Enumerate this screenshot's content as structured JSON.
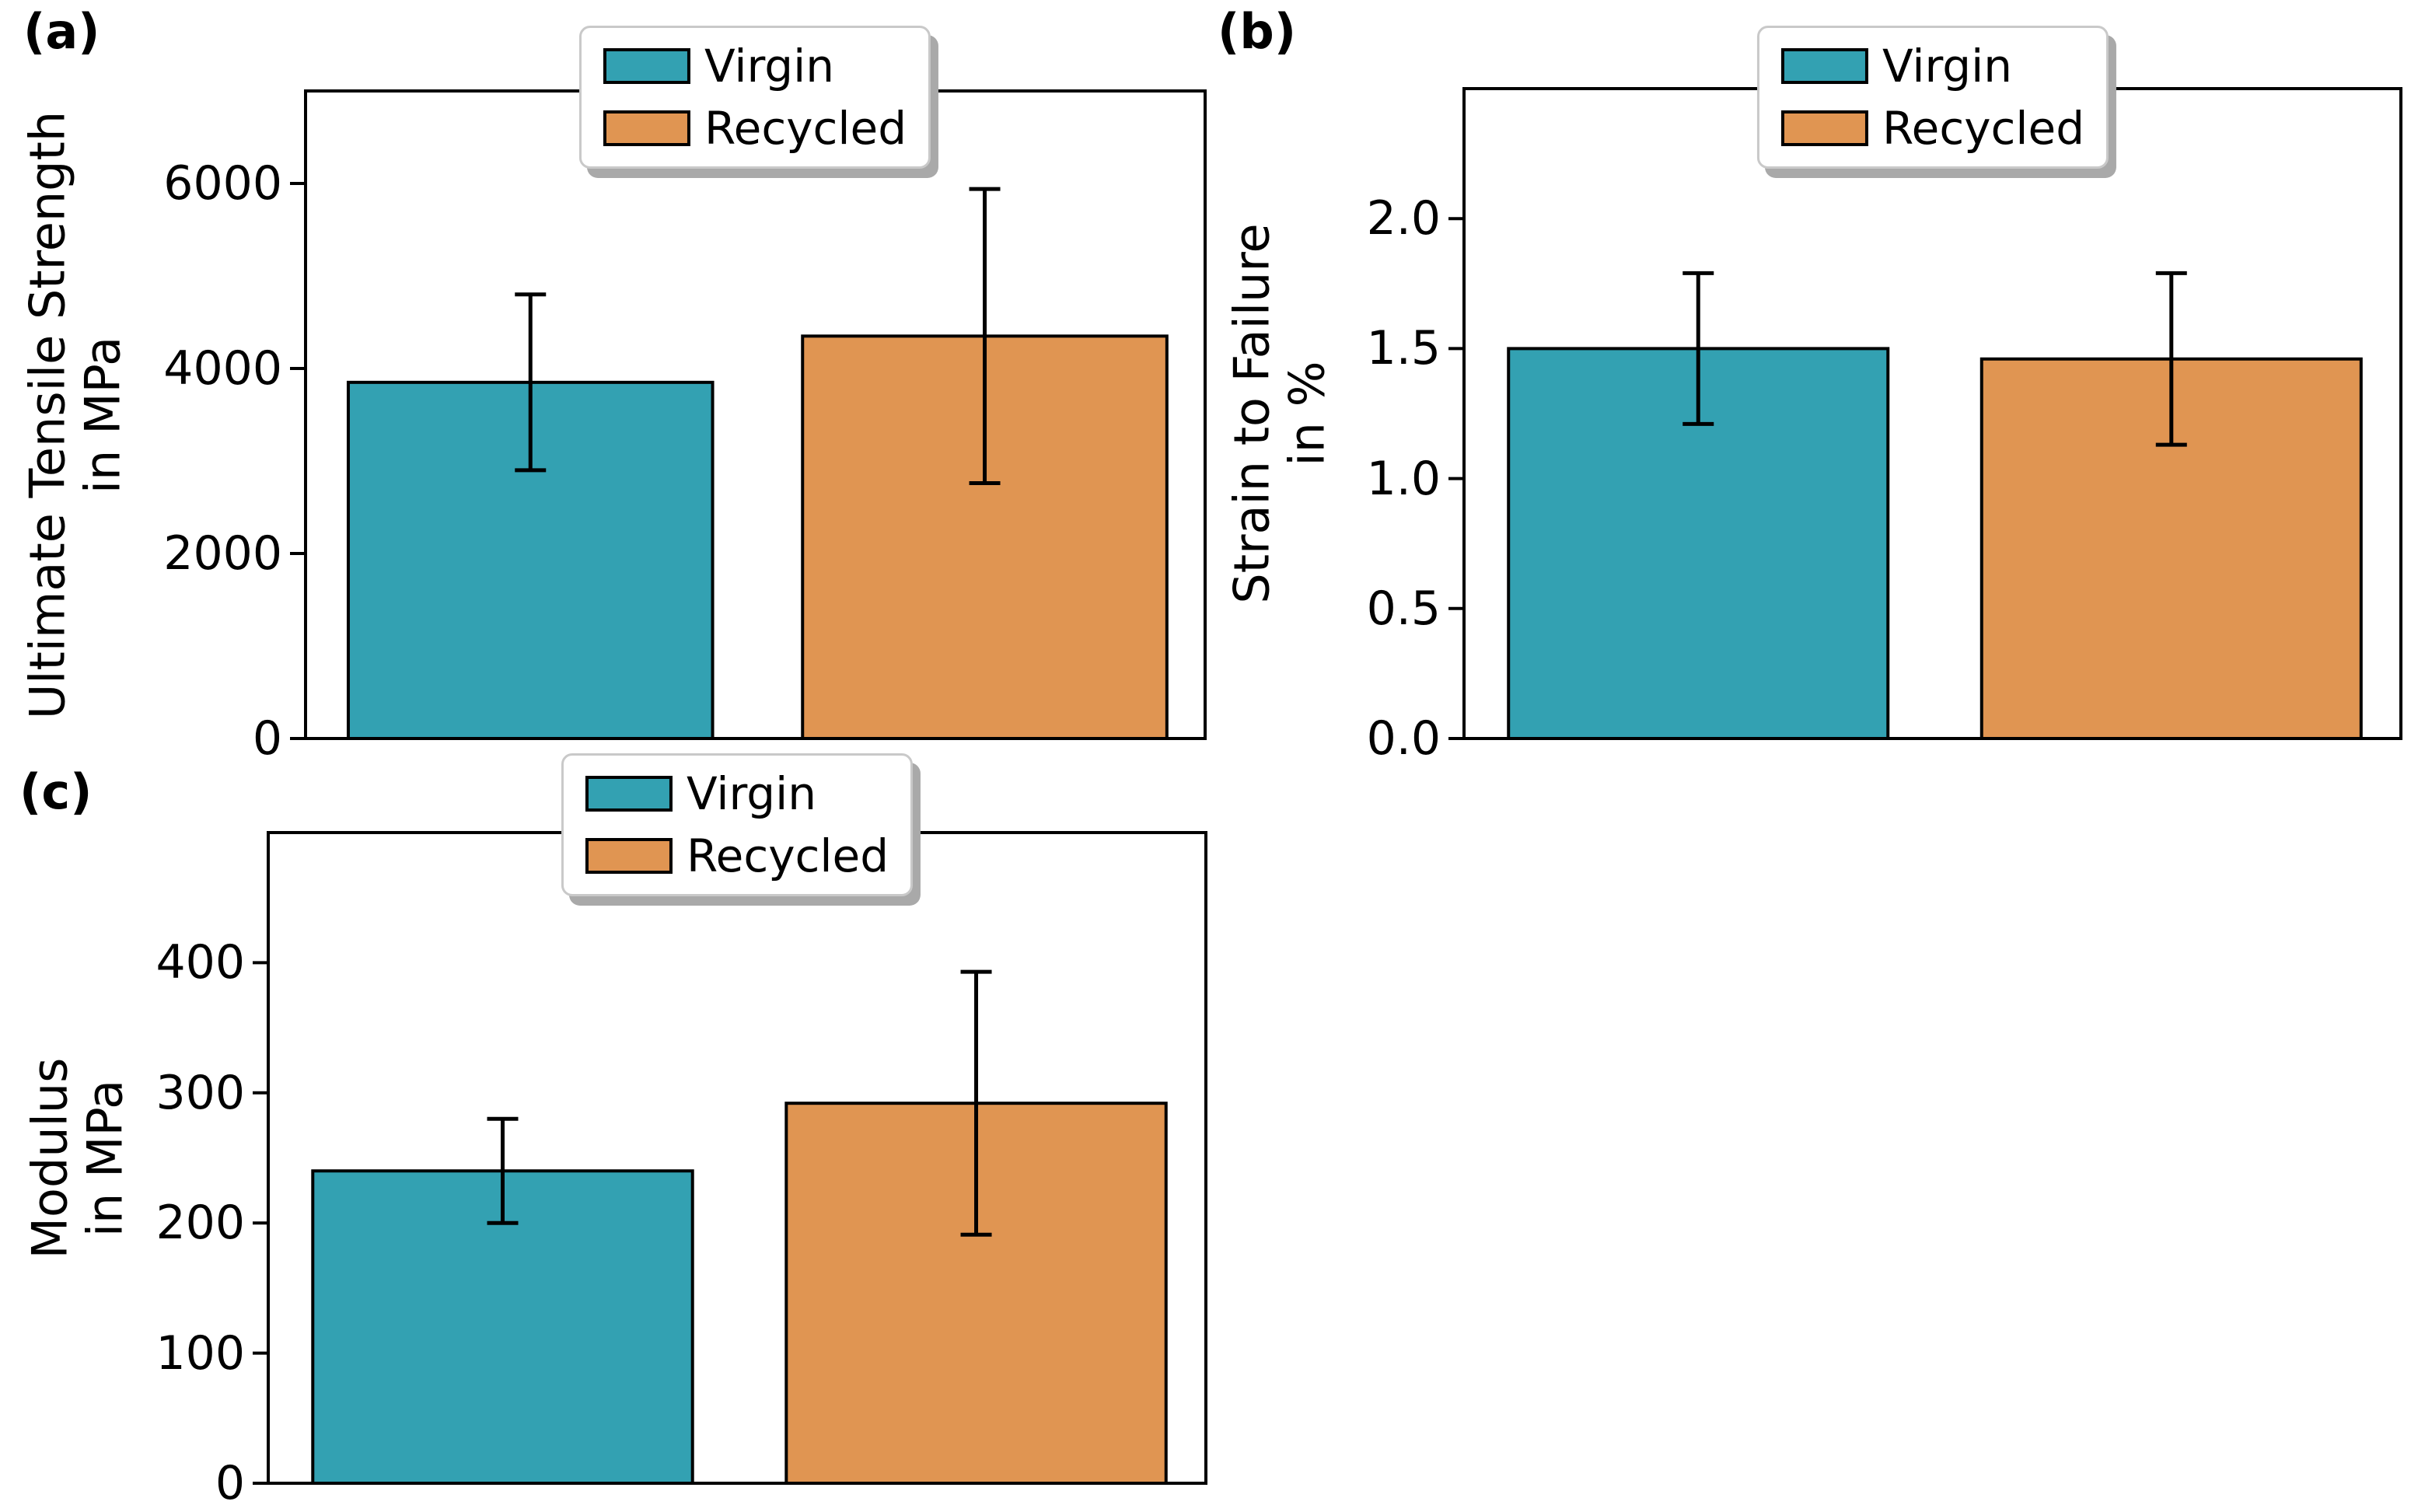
{
  "figure": {
    "background": "#ffffff",
    "series": [
      {
        "name": "Virgin",
        "color": "#33a1b2"
      },
      {
        "name": "Recycled",
        "color": "#e09552"
      }
    ],
    "colors": {
      "bar_edge": "#000000",
      "error_bar": "#000000",
      "axis": "#000000",
      "legend_border": "#c9c9c9",
      "legend_shadow": "#a9a9a9",
      "text": "#000000"
    }
  },
  "chart_data": [
    {
      "id": "a",
      "type": "bar",
      "panel_label": "(a)",
      "title": "",
      "xlabel": "",
      "ylabel": "Ultimate Tensile Strength in MPa",
      "ylabel_lines": [
        "Ultimate Tensile Strength",
        "in MPa"
      ],
      "categories": [
        "Virgin",
        "Recycled"
      ],
      "values": [
        3850,
        4350
      ],
      "errors": [
        950,
        1590
      ],
      "ylim": [
        0,
        7000
      ],
      "ytick_values": [
        0,
        2000,
        4000,
        6000
      ],
      "yticks": [
        "0",
        "2000",
        "4000",
        "6000"
      ],
      "xticks": [],
      "legend": [
        "Virgin",
        "Recycled"
      ],
      "legend_position": "upper center",
      "grid": false
    },
    {
      "id": "b",
      "type": "bar",
      "panel_label": "(b)",
      "title": "",
      "xlabel": "",
      "ylabel": "Strain to Failure in %",
      "ylabel_lines": [
        "Strain to Failure",
        "in %"
      ],
      "categories": [
        "Virgin",
        "Recycled"
      ],
      "values": [
        1.5,
        1.46
      ],
      "errors": [
        0.29,
        0.33
      ],
      "ylim": [
        0,
        2.5
      ],
      "ytick_values": [
        0,
        0.5,
        1.0,
        1.5,
        2.0
      ],
      "yticks": [
        "0.0",
        "0.5",
        "1.0",
        "1.5",
        "2.0"
      ],
      "xticks": [],
      "legend": [
        "Virgin",
        "Recycled"
      ],
      "legend_position": "upper center",
      "grid": false
    },
    {
      "id": "c",
      "type": "bar",
      "panel_label": "(c)",
      "title": "",
      "xlabel": "",
      "ylabel": "Modulus in MPa",
      "ylabel_lines": [
        "Modulus",
        "in MPa"
      ],
      "categories": [
        "Virgin",
        "Recycled"
      ],
      "values": [
        240,
        292
      ],
      "errors": [
        40,
        101
      ],
      "ylim": [
        0,
        500
      ],
      "ytick_values": [
        0,
        100,
        200,
        300,
        400
      ],
      "yticks": [
        "0",
        "100",
        "200",
        "300",
        "400"
      ],
      "xticks": [],
      "legend": [
        "Virgin",
        "Recycled"
      ],
      "legend_position": "upper center",
      "grid": false
    }
  ]
}
